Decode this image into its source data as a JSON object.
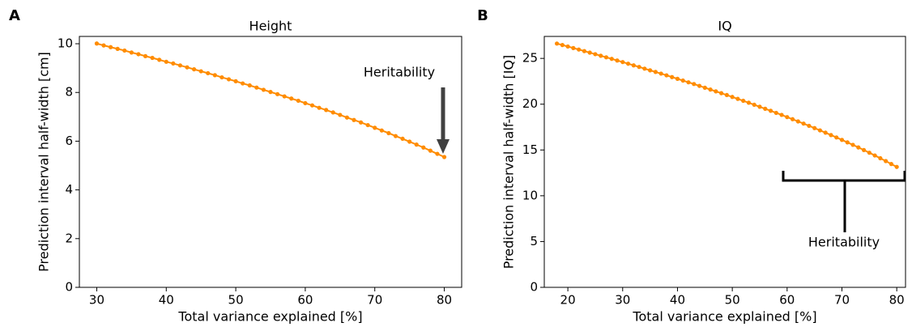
{
  "chart_data": [
    {
      "type": "line",
      "panel_label": "A",
      "title": "Height",
      "x_label": "Total variance explained [%]",
      "y_label": "Prediction interval half-width [cm]",
      "annotation": "Heritability",
      "x": [
        30,
        31,
        32,
        33,
        34,
        35,
        36,
        37,
        38,
        39,
        40,
        41,
        42,
        43,
        44,
        45,
        46,
        47,
        48,
        49,
        50,
        51,
        52,
        53,
        54,
        55,
        56,
        57,
        58,
        59,
        60,
        61,
        62,
        63,
        64,
        65,
        66,
        67,
        68,
        69,
        70,
        71,
        72,
        73,
        74,
        75,
        76,
        77,
        78,
        79,
        80
      ],
      "values": [
        10.01,
        9.93,
        9.86,
        9.79,
        9.72,
        9.64,
        9.57,
        9.49,
        9.42,
        9.34,
        9.26,
        9.19,
        9.11,
        9.03,
        8.95,
        8.87,
        8.79,
        8.71,
        8.62,
        8.54,
        8.46,
        8.37,
        8.29,
        8.2,
        8.11,
        8.02,
        7.93,
        7.84,
        7.75,
        7.66,
        7.56,
        7.47,
        7.37,
        7.28,
        7.18,
        7.08,
        6.97,
        6.87,
        6.77,
        6.66,
        6.55,
        6.44,
        6.33,
        6.21,
        6.1,
        5.98,
        5.86,
        5.74,
        5.61,
        5.48,
        5.35
      ],
      "color": "#ff8c00",
      "xlim": [
        27.5,
        82.5
      ],
      "ylim": [
        0,
        10.3
      ],
      "xticks": [
        30,
        40,
        50,
        60,
        70,
        80
      ],
      "yticks": [
        0,
        2,
        4,
        6,
        8,
        10
      ]
    },
    {
      "type": "line",
      "panel_label": "B",
      "title": "IQ",
      "x_label": "Total variance explained [%]",
      "y_label": "Prediction interval half-width [IQ]",
      "annotation": "Heritability",
      "x": [
        18,
        19,
        20,
        21,
        22,
        23,
        24,
        25,
        26,
        27,
        28,
        29,
        30,
        31,
        32,
        33,
        34,
        35,
        36,
        37,
        38,
        39,
        40,
        41,
        42,
        43,
        44,
        45,
        46,
        47,
        48,
        49,
        50,
        51,
        52,
        53,
        54,
        55,
        56,
        57,
        58,
        59,
        60,
        61,
        62,
        63,
        64,
        65,
        66,
        67,
        68,
        69,
        70,
        71,
        72,
        73,
        74,
        75,
        76,
        77,
        78,
        79,
        80
      ],
      "values": [
        26.62,
        26.46,
        26.3,
        26.13,
        25.97,
        25.8,
        25.63,
        25.46,
        25.29,
        25.12,
        24.95,
        24.77,
        24.6,
        24.42,
        24.24,
        24.07,
        23.88,
        23.7,
        23.52,
        23.34,
        23.15,
        22.96,
        22.77,
        22.58,
        22.39,
        22.2,
        22.0,
        21.8,
        21.6,
        21.4,
        21.2,
        21.0,
        20.79,
        20.58,
        20.37,
        20.16,
        19.94,
        19.72,
        19.5,
        19.28,
        19.05,
        18.83,
        18.59,
        18.36,
        18.12,
        17.88,
        17.64,
        17.39,
        17.14,
        16.89,
        16.63,
        16.37,
        16.1,
        15.83,
        15.56,
        15.28,
        14.99,
        14.7,
        14.4,
        14.1,
        13.79,
        13.47,
        13.15
      ],
      "color": "#ff8c00",
      "xlim": [
        15.7,
        81.6
      ],
      "ylim": [
        0,
        27.4
      ],
      "xticks": [
        20,
        30,
        40,
        50,
        60,
        70,
        80
      ],
      "yticks": [
        0,
        5,
        10,
        15,
        20,
        25
      ]
    }
  ]
}
